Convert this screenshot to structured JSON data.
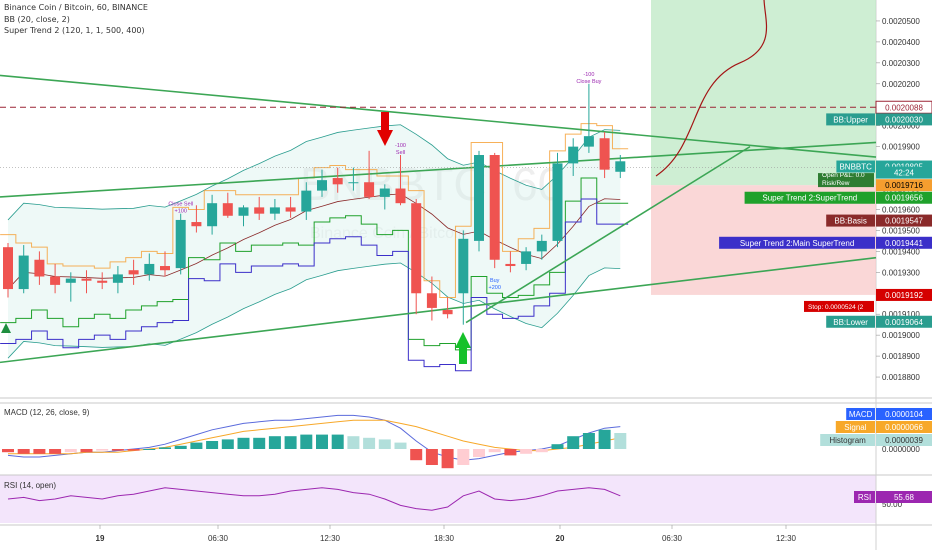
{
  "header": {
    "title": "Binance Coin / Bitcoin, 60, BINANCE",
    "bb_line": "BB (20, close, 2)",
    "st_line": "Super Trend 2 (120, 1, 1, 500, 400)"
  },
  "watermark": "BNBBTC, 60",
  "watermark_sub": "Binance Coin / Bitcoin",
  "colors": {
    "up": "#26a69a",
    "down": "#ef5350",
    "bb": "#2a9d8f",
    "supertrend": "#1fa12b",
    "main_supertrend": "#3b2fc9",
    "basis": "#8a2a2a",
    "orange": "#f59e2f",
    "dashed": "#9b2335",
    "rsi": "#9c27b0",
    "signal_line": "#f7a829",
    "macd_line": "#5b6bdc"
  },
  "chart_data": {
    "type": "candlestick",
    "symbol": "BNBBTC",
    "interval": "60",
    "ylim": [
      0.00187,
      0.00206
    ],
    "yticks": [
      "0.0020500",
      "0.0020400",
      "0.0020300",
      "0.0020200",
      "0.0020100",
      "0.0020000",
      "0.0019900",
      "0.0019800",
      "0.0019700",
      "0.0019600",
      "0.0019500",
      "0.0019400",
      "0.0019300",
      "0.0019200",
      "0.0019100",
      "0.0019000",
      "0.0018900",
      "0.0018800"
    ],
    "xticks": [
      "19",
      "06:30",
      "12:30",
      "18:30",
      "20",
      "06:30",
      "12:30"
    ],
    "candles": [
      [
        0.001942,
        0.001944,
        0.001918,
        0.001922
      ],
      [
        0.001922,
        0.001943,
        0.00192,
        0.001938
      ],
      [
        0.001936,
        0.00194,
        0.001924,
        0.001928
      ],
      [
        0.001928,
        0.001934,
        0.00192,
        0.001924
      ],
      [
        0.001925,
        0.00193,
        0.001916,
        0.001927
      ],
      [
        0.001927,
        0.001931,
        0.00192,
        0.001926
      ],
      [
        0.001926,
        0.00193,
        0.001922,
        0.001925
      ],
      [
        0.001925,
        0.001933,
        0.00192,
        0.001929
      ],
      [
        0.001931,
        0.001936,
        0.001924,
        0.001929
      ],
      [
        0.001929,
        0.001939,
        0.001926,
        0.001934
      ],
      [
        0.001933,
        0.00194,
        0.001928,
        0.001931
      ],
      [
        0.001932,
        0.001958,
        0.001929,
        0.001955
      ],
      [
        0.001954,
        0.001962,
        0.001949,
        0.001952
      ],
      [
        0.001952,
        0.001967,
        0.001948,
        0.001963
      ],
      [
        0.001963,
        0.001968,
        0.001956,
        0.001957
      ],
      [
        0.001957,
        0.001962,
        0.001952,
        0.001961
      ],
      [
        0.001961,
        0.001966,
        0.001955,
        0.001958
      ],
      [
        0.001958,
        0.001965,
        0.001955,
        0.001961
      ],
      [
        0.001961,
        0.001966,
        0.001956,
        0.001959
      ],
      [
        0.001959,
        0.001973,
        0.001955,
        0.001969
      ],
      [
        0.001969,
        0.001979,
        0.001966,
        0.001974
      ],
      [
        0.001975,
        0.00198,
        0.001968,
        0.001972
      ],
      [
        0.001973,
        0.00198,
        0.001969,
        0.001973
      ],
      [
        0.001973,
        0.001988,
        0.001965,
        0.001966
      ],
      [
        0.001966,
        0.001972,
        0.00196,
        0.00197
      ],
      [
        0.00197,
        0.001986,
        0.001962,
        0.001963
      ],
      [
        0.001963,
        0.001965,
        0.00191,
        0.00192
      ],
      [
        0.00192,
        0.001928,
        0.001907,
        0.001913
      ],
      [
        0.001912,
        0.001918,
        0.001908,
        0.00191
      ],
      [
        0.00192,
        0.00195,
        0.001905,
        0.001946
      ],
      [
        0.001945,
        0.001988,
        0.00194,
        0.001986
      ],
      [
        0.001986,
        0.001987,
        0.001932,
        0.001936
      ],
      [
        0.001934,
        0.00194,
        0.00193,
        0.001933
      ],
      [
        0.001934,
        0.001942,
        0.001931,
        0.00194
      ],
      [
        0.00194,
        0.001948,
        0.001936,
        0.001945
      ],
      [
        0.001945,
        0.001987,
        0.001942,
        0.001982
      ],
      [
        0.001982,
        0.001994,
        0.001976,
        0.00199
      ],
      [
        0.00199,
        0.00202,
        0.001987,
        0.001995
      ],
      [
        0.001994,
        0.001997,
        0.001975,
        0.001979
      ],
      [
        0.001978,
        0.001986,
        0.001975,
        0.001983
      ]
    ],
    "price_labels": [
      {
        "text": "0.0020088",
        "value": 0.0020088,
        "bg": "#ffffff",
        "fg": "#9b2335",
        "border": "#9b2335"
      },
      {
        "name": "BB:Upper",
        "text": "0.0020030",
        "value": 0.002003,
        "bg": "#2a9d8f",
        "fg": "#ffffff"
      },
      {
        "name": "BNBBTC",
        "text": "0.0019805",
        "value": 0.0019805,
        "bg": "#26a69a",
        "fg": "#ffffff"
      },
      {
        "name": "",
        "text": "42:24",
        "value": 0.0019776,
        "bg": "#26a69a",
        "fg": "#ffffff"
      },
      {
        "name": "",
        "text": "0.0019716",
        "value": 0.0019716,
        "bg": "#f59e2f",
        "fg": "#000000"
      },
      {
        "name": "Super Trend 2:SuperTrend",
        "text": "0.0019656",
        "value": 0.0019656,
        "bg": "#1fa12b",
        "fg": "#ffffff"
      },
      {
        "name": "BB:Basis",
        "text": "0.0019547",
        "value": 0.0019547,
        "bg": "#8a2a2a",
        "fg": "#ffffff"
      },
      {
        "name": "Super Trend 2:Main SuperTrend",
        "text": "0.0019441",
        "value": 0.0019441,
        "bg": "#3b2fc9",
        "fg": "#ffffff"
      },
      {
        "name": "",
        "text": "0.0019192",
        "value": 0.0019192,
        "bg": "#d50000",
        "fg": "#ffffff"
      },
      {
        "name": "BB:Lower",
        "text": "0.0019064",
        "value": 0.0019064,
        "bg": "#2a9d8f",
        "fg": "#ffffff"
      }
    ],
    "position": {
      "open_pnl": "Open P&L: 0.0",
      "risk_reward": "Risk/Rew",
      "stop_label": "Stop: 0.0000524 (2"
    },
    "signals": [
      {
        "candle": 11,
        "label": "Close Sell",
        "sublabel": "+100"
      },
      {
        "candle": 25,
        "label": "-100",
        "sublabel": "Sell"
      },
      {
        "candle": 31,
        "label": "Buy",
        "sublabel": "+200"
      },
      {
        "candle": 37,
        "label": "-100",
        "sublabel": "Close Buy"
      }
    ]
  },
  "macd": {
    "title": "MACD (12, 26, close, 9)",
    "labels": [
      {
        "name": "MACD",
        "value": "0.0000104",
        "bg": "#2962ff"
      },
      {
        "name": "Signal",
        "value": "0.0000066",
        "bg": "#f7a829"
      },
      {
        "name": "Histogram",
        "value": "0.0000039",
        "bg": "#b2dfdb"
      }
    ],
    "ytick": "0.0000000",
    "histogram": [
      -2,
      -3,
      -3,
      -3,
      -2,
      -2,
      -1,
      -1,
      -1,
      0,
      1,
      2,
      4,
      5,
      6,
      7,
      7,
      8,
      8,
      9,
      9,
      9,
      8,
      7,
      6,
      4,
      -7,
      -10,
      -12,
      -10,
      -5,
      -2,
      -4,
      -3,
      -2,
      3,
      8,
      10,
      12,
      10
    ],
    "macd_line": [
      -4,
      -5,
      -5,
      -4,
      -3,
      -2,
      -2,
      -1,
      0,
      1,
      3,
      6,
      9,
      12,
      14,
      16,
      17,
      18,
      18,
      19,
      20,
      21,
      21,
      20,
      18,
      13,
      5,
      -2,
      -5,
      -7,
      -6,
      -4,
      -2,
      -1,
      0,
      2,
      6,
      10,
      13,
      14
    ],
    "signal_line": [
      -3,
      -3,
      -3,
      -3,
      -3,
      -2,
      -2,
      -2,
      -1,
      0,
      1,
      3,
      5,
      7,
      9,
      11,
      12,
      13,
      14,
      15,
      16,
      17,
      18,
      18,
      18,
      16,
      14,
      11,
      8,
      5,
      3,
      1,
      0,
      -1,
      -1,
      0,
      1,
      3,
      5,
      7
    ]
  },
  "rsi": {
    "title": "RSI (14, open)",
    "label": "RSI",
    "value": "55.68",
    "ytick": "50.00",
    "values": [
      50,
      51,
      49,
      50,
      52,
      51,
      50,
      52,
      53,
      55,
      57,
      56,
      55,
      54,
      53,
      52,
      52,
      53,
      55,
      56,
      57,
      56,
      54,
      53,
      50,
      46,
      44,
      43,
      45,
      52,
      55,
      50,
      49,
      50,
      52,
      55,
      56,
      57,
      56,
      52
    ]
  }
}
